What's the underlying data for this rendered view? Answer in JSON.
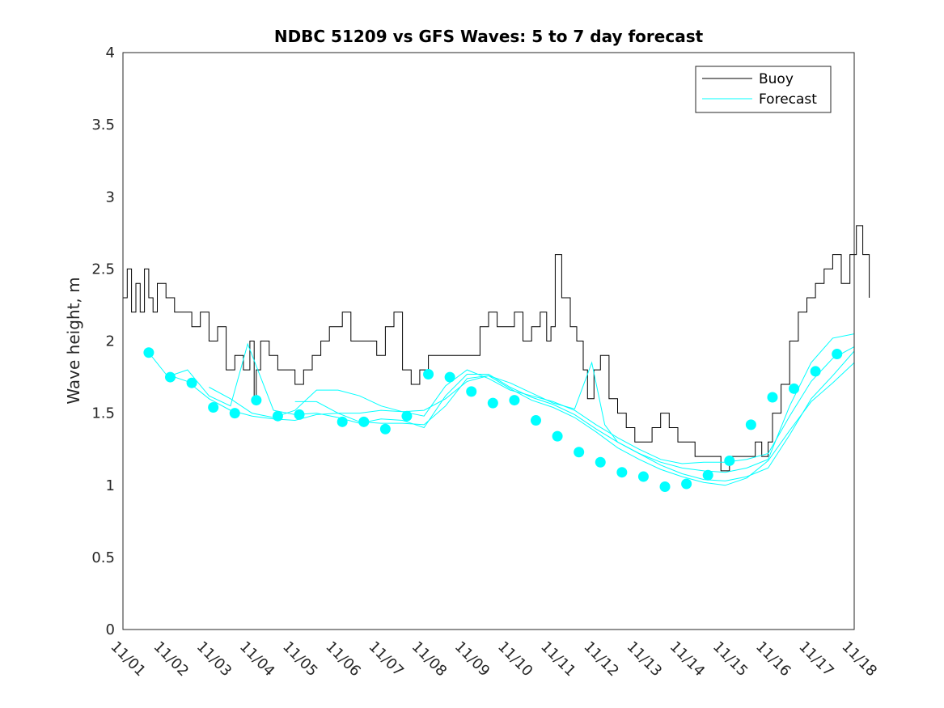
{
  "chart_data": {
    "type": "line",
    "title": "NDBC 51209 vs GFS Waves: 5 to 7 day forecast",
    "xlabel": "",
    "ylabel": "Wave height, m",
    "xlim": [
      0,
      17
    ],
    "ylim": [
      0,
      4
    ],
    "yticks": [
      0,
      0.5,
      1,
      1.5,
      2,
      2.5,
      3,
      3.5,
      4
    ],
    "yticklabels": [
      "0",
      "0.5",
      "1",
      "1.5",
      "2",
      "2.5",
      "3",
      "3.5",
      "4"
    ],
    "xticklabels": [
      "11/01",
      "11/02",
      "11/03",
      "11/04",
      "11/05",
      "11/06",
      "11/07",
      "11/08",
      "11/09",
      "11/10",
      "11/11",
      "11/12",
      "11/13",
      "11/14",
      "11/15",
      "11/16",
      "11/17",
      "11/18"
    ],
    "legend": {
      "position": "top-right",
      "entries": [
        "Buoy",
        "Forecast"
      ]
    },
    "colors": {
      "buoy": "#000000",
      "forecast": "#00ffff",
      "axes": "#262626"
    },
    "series": [
      {
        "name": "Buoy",
        "x": [
          0,
          0.1,
          0.2,
          0.3,
          0.4,
          0.5,
          0.6,
          0.7,
          0.8,
          1.0,
          1.2,
          1.4,
          1.6,
          1.8,
          2.0,
          2.2,
          2.4,
          2.6,
          2.8,
          2.95,
          3.05,
          3.1,
          3.2,
          3.4,
          3.6,
          3.8,
          4.0,
          4.2,
          4.4,
          4.6,
          4.8,
          4.95,
          5.1,
          5.3,
          5.5,
          5.7,
          5.9,
          6.1,
          6.3,
          6.5,
          6.7,
          6.9,
          7.1,
          7.3,
          7.5,
          7.7,
          7.9,
          8.1,
          8.3,
          8.5,
          8.7,
          8.9,
          9.1,
          9.3,
          9.5,
          9.7,
          9.85,
          9.95,
          10.05,
          10.2,
          10.4,
          10.55,
          10.7,
          10.8,
          10.95,
          11.1,
          11.3,
          11.5,
          11.7,
          11.9,
          12.1,
          12.3,
          12.5,
          12.7,
          12.9,
          13.1,
          13.3,
          13.5,
          13.7,
          13.9,
          14.1,
          14.3,
          14.5,
          14.7,
          14.85,
          15.0,
          15.1,
          15.3,
          15.5,
          15.7,
          15.9,
          16.1,
          16.3,
          16.5,
          16.7,
          16.9,
          17.05,
          17.2,
          17.35
        ],
        "values": [
          2.3,
          2.5,
          2.2,
          2.4,
          2.2,
          2.5,
          2.3,
          2.2,
          2.4,
          2.3,
          2.2,
          2.2,
          2.1,
          2.2,
          2.0,
          2.1,
          1.8,
          1.9,
          1.8,
          2.0,
          1.6,
          1.8,
          2.0,
          1.9,
          1.8,
          1.8,
          1.7,
          1.8,
          1.9,
          2.0,
          2.1,
          2.1,
          2.2,
          2.0,
          2.0,
          2.0,
          1.9,
          2.1,
          2.2,
          1.8,
          1.7,
          1.8,
          1.9,
          1.9,
          1.9,
          1.9,
          1.9,
          1.9,
          2.1,
          2.2,
          2.1,
          2.1,
          2.2,
          2.0,
          2.1,
          2.2,
          2.0,
          2.1,
          2.6,
          2.3,
          2.1,
          2.0,
          1.8,
          1.6,
          1.8,
          1.9,
          1.6,
          1.5,
          1.4,
          1.3,
          1.3,
          1.4,
          1.5,
          1.4,
          1.3,
          1.3,
          1.2,
          1.2,
          1.2,
          1.1,
          1.2,
          1.2,
          1.2,
          1.3,
          1.2,
          1.3,
          1.5,
          1.7,
          2.0,
          2.2,
          2.3,
          2.4,
          2.5,
          2.6,
          2.4,
          2.6,
          2.8,
          2.6,
          2.3
        ]
      },
      {
        "name": "Forecast",
        "x": [
          0.6,
          1.0,
          1.5,
          2.0,
          2.5,
          3.0,
          3.5,
          4.0,
          4.5,
          5.0,
          5.5,
          6.0,
          6.5,
          7.0,
          7.5,
          8.0,
          8.5,
          9.0,
          9.5,
          10.0,
          10.5,
          11.0,
          11.5,
          12.0,
          12.5,
          13.0,
          13.5,
          14.0,
          14.5,
          15.0,
          15.5,
          16.0,
          16.5,
          17.0
        ],
        "values": [
          1.92,
          1.77,
          1.72,
          1.6,
          1.52,
          1.48,
          1.46,
          1.45,
          1.49,
          1.5,
          1.44,
          1.43,
          1.43,
          1.42,
          1.55,
          1.74,
          1.76,
          1.67,
          1.59,
          1.54,
          1.47,
          1.37,
          1.26,
          1.18,
          1.11,
          1.06,
          1.02,
          1.0,
          1.05,
          1.17,
          1.38,
          1.58,
          1.71,
          1.85
        ]
      },
      {
        "name": "Forecast",
        "x": [
          1.0,
          1.5,
          2.0,
          2.5,
          2.9,
          3.5,
          4.0,
          4.5,
          5.0,
          5.5,
          6.0,
          6.5,
          7.0,
          7.5,
          8.0,
          8.5,
          9.0,
          9.5,
          10.0,
          10.5,
          11.0,
          11.5,
          12.0,
          12.5,
          13.0,
          13.5,
          14.0,
          14.5,
          15.0,
          15.5,
          16.0,
          16.5,
          17.0
        ],
        "values": [
          1.75,
          1.8,
          1.62,
          1.55,
          1.98,
          1.52,
          1.49,
          1.5,
          1.47,
          1.43,
          1.46,
          1.45,
          1.4,
          1.62,
          1.77,
          1.77,
          1.68,
          1.61,
          1.56,
          1.49,
          1.39,
          1.3,
          1.22,
          1.14,
          1.08,
          1.04,
          1.03,
          1.06,
          1.12,
          1.35,
          1.6,
          1.76,
          1.93
        ]
      },
      {
        "name": "Forecast",
        "x": [
          2.0,
          2.5,
          3.0,
          3.5,
          4.0,
          4.5,
          5.0,
          5.5,
          6.0,
          6.5,
          7.0,
          7.5,
          8.0,
          8.5,
          9.0,
          9.5,
          10.0,
          10.5,
          11.0,
          11.5,
          12.0,
          12.5,
          13.0,
          13.5,
          14.0,
          14.5,
          15.0,
          15.5,
          16.0,
          16.5,
          17.0
        ],
        "values": [
          1.68,
          1.6,
          1.5,
          1.47,
          1.52,
          1.66,
          1.66,
          1.62,
          1.55,
          1.51,
          1.48,
          1.69,
          1.8,
          1.74,
          1.66,
          1.62,
          1.58,
          1.52,
          1.42,
          1.33,
          1.25,
          1.18,
          1.15,
          1.16,
          1.16,
          1.18,
          1.22,
          1.48,
          1.72,
          1.88,
          1.96
        ]
      },
      {
        "name": "Forecast",
        "x": [
          4.0,
          4.5,
          5.0,
          5.5,
          6.0,
          6.5,
          7.0,
          7.5,
          8.0,
          8.5,
          9.0,
          9.5,
          10.0,
          10.5,
          10.9,
          11.2,
          11.5,
          12.0,
          12.5,
          13.0,
          13.5,
          14.0,
          14.5,
          15.0,
          15.5,
          16.0,
          16.5,
          17.0
        ],
        "values": [
          1.58,
          1.58,
          1.5,
          1.5,
          1.52,
          1.51,
          1.52,
          1.6,
          1.72,
          1.76,
          1.71,
          1.64,
          1.57,
          1.53,
          1.85,
          1.42,
          1.3,
          1.22,
          1.16,
          1.12,
          1.1,
          1.09,
          1.12,
          1.18,
          1.55,
          1.85,
          2.02,
          2.05
        ]
      }
    ],
    "markers": {
      "name": "Forecast",
      "x": [
        0.6,
        1.1,
        1.6,
        2.1,
        2.6,
        3.1,
        3.6,
        4.1,
        5.1,
        5.6,
        6.1,
        6.6,
        7.1,
        7.6,
        8.1,
        8.6,
        9.1,
        9.6,
        10.1,
        10.6,
        11.1,
        11.6,
        12.1,
        12.6,
        13.1,
        13.6,
        14.1,
        14.6,
        15.1,
        15.6,
        16.1,
        16.6
      ],
      "values": [
        1.92,
        1.75,
        1.71,
        1.54,
        1.5,
        1.59,
        1.48,
        1.49,
        1.44,
        1.44,
        1.39,
        1.48,
        1.77,
        1.75,
        1.65,
        1.57,
        1.59,
        1.45,
        1.34,
        1.23,
        1.16,
        1.09,
        1.06,
        0.99,
        1.01,
        1.07,
        1.17,
        1.42,
        1.61,
        1.67,
        1.79,
        1.91
      ]
    }
  }
}
